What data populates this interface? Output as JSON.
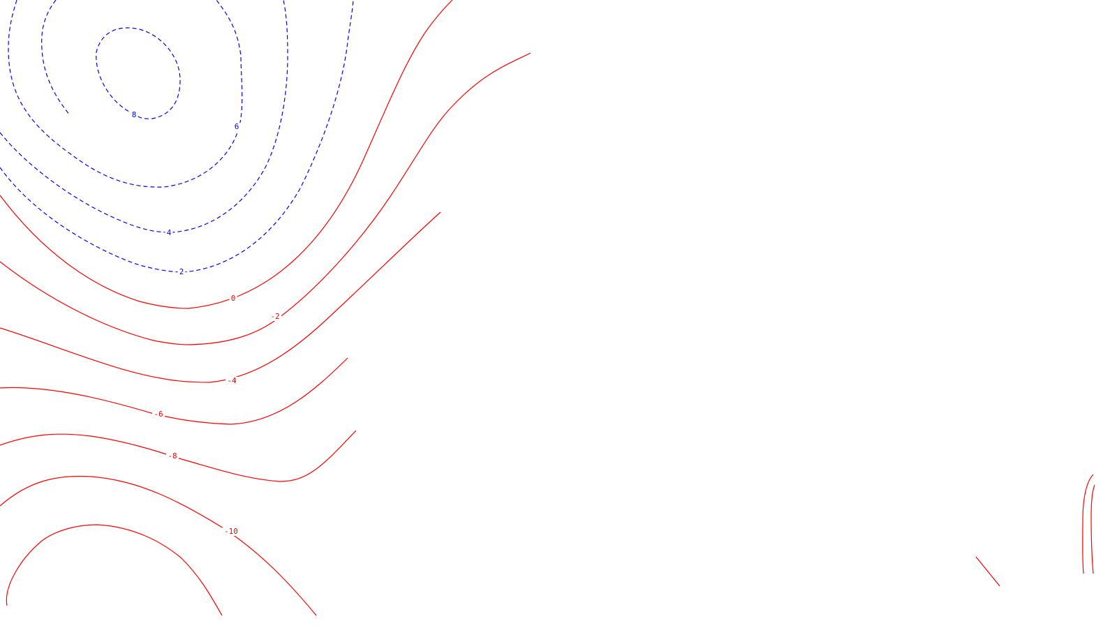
{
  "chart_data": {
    "type": "contour",
    "negative_color": "#ff0000",
    "positive_color": "#0000ff",
    "positive_line_style": "dashed",
    "negative_line_style": "solid",
    "levels": [
      {
        "value": 8,
        "label": "8",
        "sign": "positive"
      },
      {
        "value": 6,
        "label": "6",
        "sign": "positive"
      },
      {
        "value": 4,
        "label": "4",
        "sign": "positive"
      },
      {
        "value": 2,
        "label": "2",
        "sign": "positive"
      },
      {
        "value": 0,
        "label": "0",
        "sign": "negative"
      },
      {
        "value": -2,
        "label": "-2",
        "sign": "negative"
      },
      {
        "value": -4,
        "label": "-4",
        "sign": "negative"
      },
      {
        "value": -6,
        "label": "-6",
        "sign": "negative"
      },
      {
        "value": -8,
        "label": "-8",
        "sign": "negative"
      },
      {
        "value": -10,
        "label": "-10",
        "sign": "negative"
      }
    ]
  }
}
